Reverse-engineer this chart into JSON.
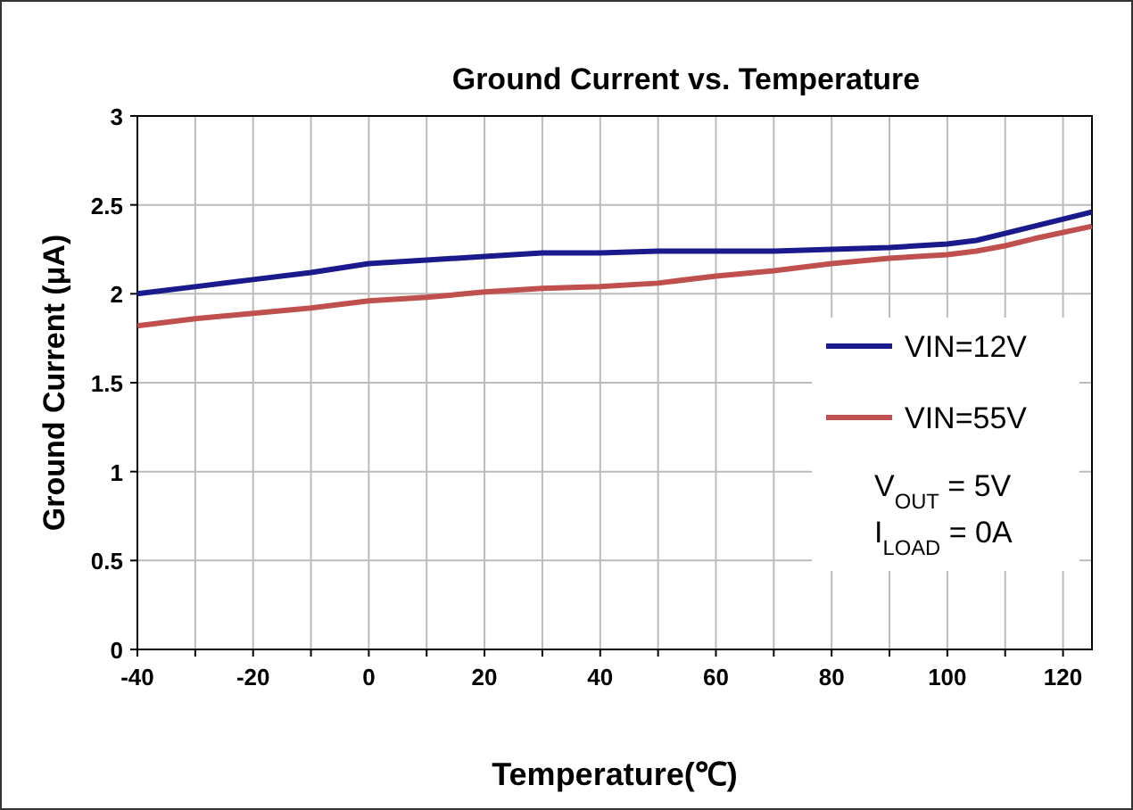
{
  "chart_data": {
    "type": "line",
    "title": "Ground Current vs. Temperature",
    "xlabel": "Temperature(℃)",
    "ylabel": "Ground Current (μA)",
    "x": [
      -40,
      -30,
      -20,
      -10,
      0,
      10,
      20,
      30,
      40,
      50,
      60,
      70,
      80,
      90,
      100,
      105,
      110,
      115,
      125
    ],
    "series": [
      {
        "name": "VIN=12V",
        "color": "#1a1a8c",
        "values": [
          2.0,
          2.04,
          2.08,
          2.12,
          2.17,
          2.19,
          2.21,
          2.23,
          2.23,
          2.24,
          2.24,
          2.24,
          2.25,
          2.26,
          2.28,
          2.3,
          2.34,
          2.38,
          2.46
        ]
      },
      {
        "name": "VIN=55V",
        "color": "#c0504d",
        "values": [
          1.82,
          1.86,
          1.89,
          1.92,
          1.96,
          1.98,
          2.01,
          2.03,
          2.04,
          2.06,
          2.1,
          2.13,
          2.17,
          2.2,
          2.22,
          2.24,
          2.27,
          2.31,
          2.38
        ]
      }
    ],
    "xlim": [
      -40,
      125
    ],
    "xticks": [
      -40,
      {
        "value": -30,
        "label": null
      },
      -20,
      {
        "value": -10,
        "label": null
      },
      0,
      {
        "value": 10,
        "label": null
      },
      20,
      {
        "value": 30,
        "label": null
      },
      40,
      {
        "value": 50,
        "label": null
      },
      60,
      {
        "value": 70,
        "label": null
      },
      80,
      {
        "value": 90,
        "label": null
      },
      100,
      {
        "value": 110,
        "label": null
      },
      120
    ],
    "ylim": [
      0,
      3
    ],
    "yticks": [
      0,
      0.5,
      1,
      1.5,
      2,
      2.5,
      3
    ],
    "grid": true,
    "legend": "right",
    "marker": "none",
    "line_style": "solid",
    "annotations": [
      "V$_{OUT}$ = 5V",
      "I$_{LOAD}$ = 0A"
    ]
  }
}
